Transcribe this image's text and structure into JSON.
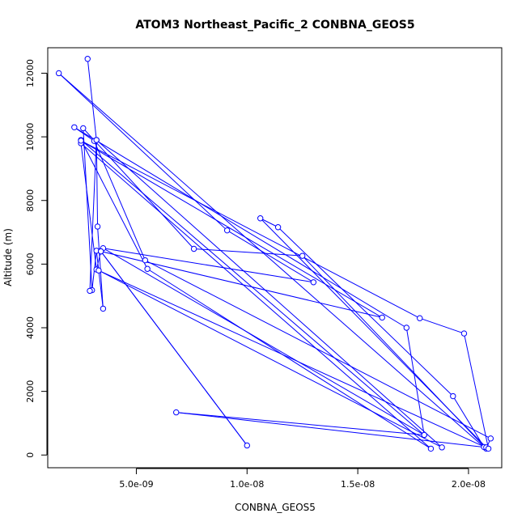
{
  "chart_data": {
    "type": "line",
    "title": "ATOM3 Northeast_Pacific_2 CONBNA_GEOS5",
    "xlabel": "CONBNA_GEOS5",
    "ylabel": "Altitude (m)",
    "xlim": [
      1e-09,
      2.15e-08
    ],
    "ylim": [
      -400,
      12800
    ],
    "x_ticks": [
      {
        "value": 5e-09,
        "label": "5.0e-09"
      },
      {
        "value": 1e-08,
        "label": "1.0e-08"
      },
      {
        "value": 1.5e-08,
        "label": "1.5e-08"
      },
      {
        "value": 2e-08,
        "label": "2.0e-08"
      }
    ],
    "y_ticks": [
      {
        "value": 0,
        "label": "0"
      },
      {
        "value": 2000,
        "label": "2000"
      },
      {
        "value": 4000,
        "label": "4000"
      },
      {
        "value": 6000,
        "label": "6000"
      },
      {
        "value": 8000,
        "label": "8000"
      },
      {
        "value": 10000,
        "label": "10000"
      },
      {
        "value": 12000,
        "label": "12000"
      }
    ],
    "color": "#0000ff",
    "marker": "open-circle",
    "grid": false,
    "series": [
      {
        "x": [
          2.8e-09,
          3.2e-09,
          3.25e-09,
          3.5e-09,
          3.2e-09,
          3e-09,
          2.6e-09,
          7.6e-09,
          1.25e-08,
          2.08e-08,
          2.1e-08,
          5.4e-09,
          3.1e-09,
          2.2e-09,
          1.72e-08,
          1.8e-08,
          3.5e-09,
          1.3e-08,
          9.1e-09,
          1.5e-09,
          2.07e-08,
          1.93e-08,
          1.14e-08,
          1.06e-08,
          2.08e-08,
          6.8e-09,
          1.8e-08,
          2.5e-09,
          5.5e-09,
          1.83e-08,
          2.5e-09,
          3.2e-09,
          3.4e-09,
          1e-08,
          3.4e-09,
          1.61e-08,
          2.5e-09,
          1.78e-08,
          1.98e-08,
          2.09e-08,
          3.3e-09,
          1.88e-08,
          3.2e-09,
          2.9e-09
        ],
        "y": [
          12450,
          9900,
          7180,
          4600,
          6420,
          5180,
          10270,
          6480,
          6260,
          200,
          520,
          6120,
          9870,
          10300,
          4000,
          630,
          6500,
          5430,
          7060,
          12000,
          250,
          1850,
          7160,
          7440,
          240,
          1340,
          630,
          9900,
          5850,
          200,
          9800,
          5830,
          6400,
          300,
          6400,
          4320,
          9880,
          4300,
          3820,
          200,
          5800,
          240,
          9900,
          5160
        ]
      }
    ]
  }
}
